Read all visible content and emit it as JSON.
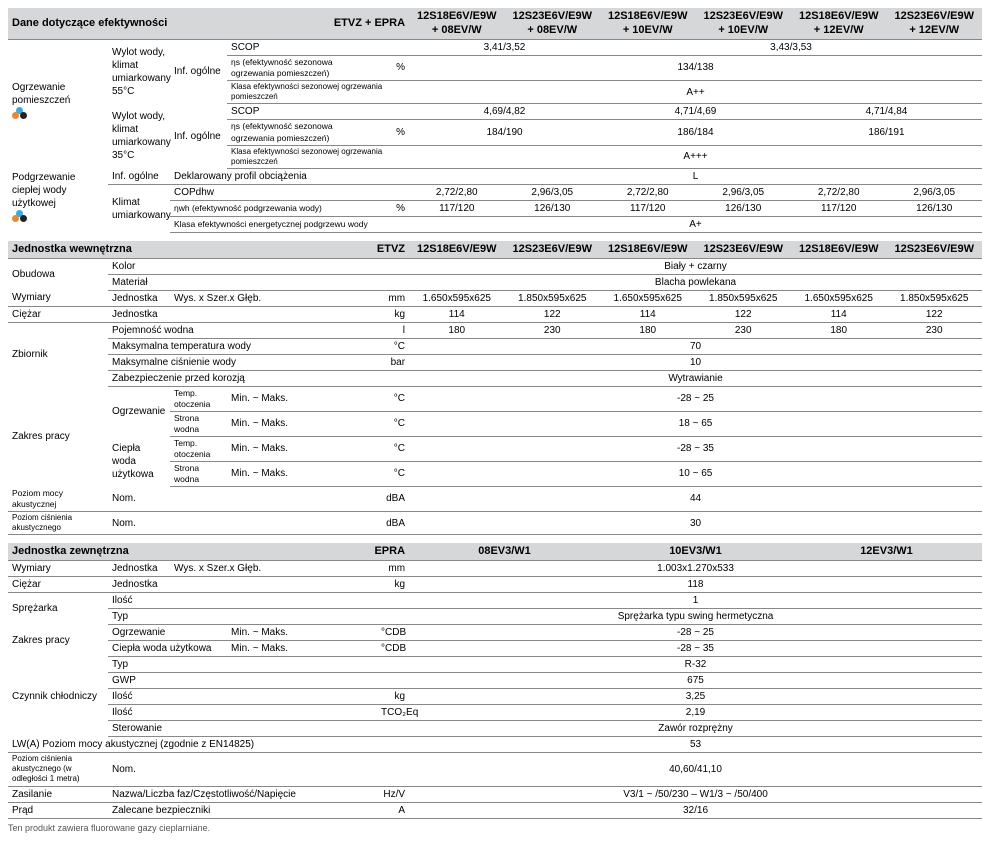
{
  "sec1": {
    "title": "Dane dotyczące efektywności",
    "type_col": "ETVZ + EPRA",
    "cols": [
      "12S18E6V/E9W + 08EV/W",
      "12S23E6V/E9W + 08EV/W",
      "12S18E6V/E9W + 10EV/W",
      "12S23E6V/E9W + 10EV/W",
      "12S18E6V/E9W + 12EV/W",
      "12S23E6V/E9W + 12EV/W"
    ],
    "heating": "Ogrzewanie pomieszczeń",
    "outlet55": "Wylot wody, klimat umiarkowany 55°C",
    "outlet35": "Wylot wody, klimat umiarkowany 35°C",
    "inf": "Inf. ogólne",
    "scop": "SCOP",
    "ns": "ηs (efektywność sezonowa ogrzewania pomieszczeń)",
    "pct": "%",
    "klasa": "Klasa efektywności sezonowej ogrzewania pomieszczeń",
    "scop55a": "3,41/3,52",
    "scop55b": "3,43/3,53",
    "ns55": "134/138",
    "klasa55": "A++",
    "scop35a": "4,69/4,82",
    "scop35b": "4,71/4,69",
    "scop35c": "4,71/4,84",
    "ns35a": "184/190",
    "ns35b": "186/184",
    "ns35c": "186/191",
    "klasa35": "A+++",
    "dhw": "Podgrzewanie ciepłej wody użytkowej",
    "profil": "Deklarowany profil obciążenia",
    "profil_v": "L",
    "klimat": "Klimat umiarkowany",
    "copdhw": "COPdhw",
    "cop": [
      "2,72/2,80",
      "2,96/3,05",
      "2,72/2,80",
      "2,96/3,05",
      "2,72/2,80",
      "2,96/3,05"
    ],
    "nwh": "ηwh (efektywność podgrzewania wody)",
    "nwhv": [
      "117/120",
      "126/130",
      "117/120",
      "126/130",
      "117/120",
      "126/130"
    ],
    "klasadhw": "Klasa efektywności energetycznej podgrzewu wody",
    "klasadhw_v": "A+"
  },
  "sec2": {
    "title": "Jednostka wewnętrzna",
    "type_col": "ETVZ",
    "cols": [
      "12S18E6V/E9W",
      "12S23E6V/E9W",
      "12S18E6V/E9W",
      "12S23E6V/E9W",
      "12S18E6V/E9W",
      "12S23E6V/E9W"
    ],
    "obudowa": "Obudowa",
    "kolor": "Kolor",
    "kolor_v": "Biały + czarny",
    "material": "Materiał",
    "material_v": "Blacha powlekana",
    "wymiary": "Wymiary",
    "jednostka": "Jednostka",
    "whd": "Wys. x Szer.x Głęb.",
    "mm": "mm",
    "dims": [
      "1.650x595x625",
      "1.850x595x625",
      "1.650x595x625",
      "1.850x595x625",
      "1.650x595x625",
      "1.850x595x625"
    ],
    "ciezar": "Ciężar",
    "kg": "kg",
    "wts": [
      "114",
      "122",
      "114",
      "122",
      "114",
      "122"
    ],
    "zbiornik": "Zbiornik",
    "poj": "Pojemność wodna",
    "l": "l",
    "pojv": [
      "180",
      "230",
      "180",
      "230",
      "180",
      "230"
    ],
    "maxt": "Maksymalna temperatura wody",
    "degc": "°C",
    "maxt_v": "70",
    "maxp": "Maksymalne ciśnienie wody",
    "bar": "bar",
    "maxp_v": "10",
    "zab": "Zabezpieczenie przed korozją",
    "zab_v": "Wytrawianie",
    "zakres": "Zakres pracy",
    "ogrz": "Ogrzewanie",
    "temp": "Temp. otoczenia",
    "strona": "Strona wodna",
    "minmax": "Min. ~ Maks.",
    "ciepla": "Ciepła woda użytkowa",
    "ogrz_t": "-28 ~ 25",
    "ogrz_s": "18 ~ 65",
    "cw_t": "-28 ~ 35",
    "cw_s": "10 ~ 65",
    "pma": "Poziom mocy akustycznej",
    "nom": "Nom.",
    "dba": "dBA",
    "pma_v": "44",
    "pca": "Poziom ciśnienia akustycznego",
    "pca_v": "30"
  },
  "sec3": {
    "title": "Jednostka zewnętrzna",
    "type_col": "EPRA",
    "cols": [
      "08EV3/W1",
      "10EV3/W1",
      "12EV3/W1"
    ],
    "wymiary": "Wymiary",
    "jednostka": "Jednostka",
    "whd": "Wys. x Szer.x Głęb.",
    "mm": "mm",
    "dims": "1.003x1.270x533",
    "ciezar": "Ciężar",
    "kg": "kg",
    "wt": "118",
    "sprez": "Sprężarka",
    "ilosc": "Ilość",
    "ilosc_v": "1",
    "typ": "Typ",
    "typ_v": "Sprężarka typu swing hermetyczna",
    "zakres": "Zakres pracy",
    "ogrz": "Ogrzewanie",
    "ciepla": "Ciepła woda użytkowa",
    "minmax": "Min. ~ Maks.",
    "cdb": "°CDB",
    "ogrz_v": "-28 ~ 25",
    "cw_v": "-28 ~ 35",
    "czynnik": "Czynnik chłodniczy",
    "ctyp_v": "R-32",
    "gwp": "GWP",
    "gwp_v": "675",
    "ilkg": "3,25",
    "tco": "TCO₂Eq",
    "tco_v": "2,19",
    "ster": "Sterowanie",
    "ster_v": "Zawór rozprężny",
    "lwa": "LW(A) Poziom mocy akustycznej (zgodnie z EN14825)",
    "lwa_v": "53",
    "pca": "Poziom ciśnienia akustycznego (w odległości 1 metra)",
    "nom": "Nom.",
    "pca_v": "40,60/41,10",
    "zas": "Zasilanie",
    "nazwa": "Nazwa/Liczba faz/Częstotliwość/Napięcie",
    "hzv": "Hz/V",
    "zas_v": "V3/1 ~ /50/230 – W1/3 ~ /50/400",
    "prad": "Prąd",
    "bezp": "Zalecane bezpieczniki",
    "a": "A",
    "prad_v": "32/16"
  },
  "foot": "Ten produkt zawiera fluorowane gazy cieplarniane."
}
